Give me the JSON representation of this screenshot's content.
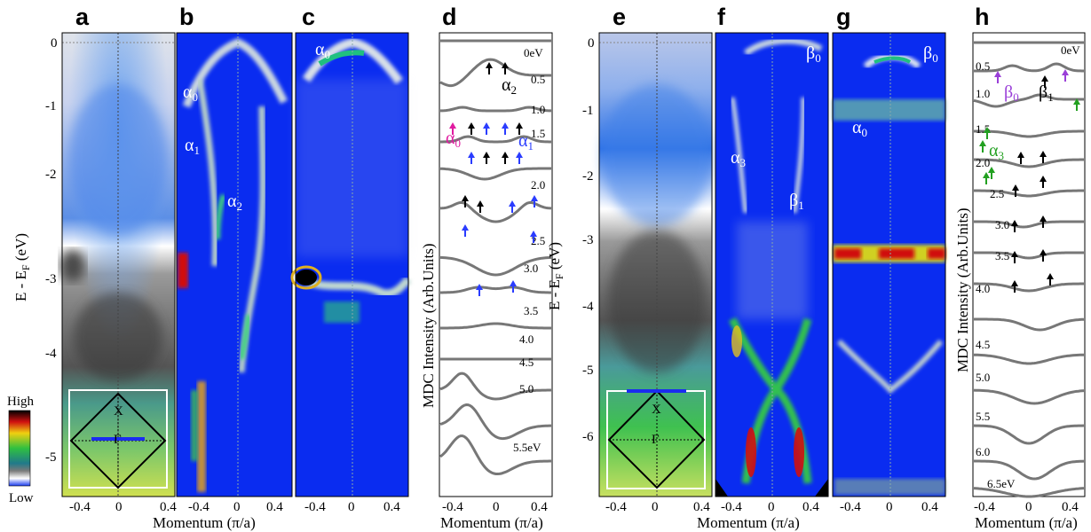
{
  "figure": {
    "panel_letters": [
      "a",
      "b",
      "c",
      "d",
      "e",
      "f",
      "g",
      "h"
    ],
    "y_axis_label": "E - E",
    "y_axis_subscript": "F",
    "y_axis_unit": " (eV)",
    "x_axis_label": "Momentum (π/a)",
    "mdc_axis_label": "MDC Intensity (Arb.Units)",
    "colorbar": {
      "high": "High",
      "low": "Low"
    },
    "bz_labels": {
      "x": "X",
      "gamma": "Γ"
    },
    "y_ticks_left": [
      "0",
      "-1",
      "-2",
      "-3",
      "-4",
      "-5"
    ],
    "y_ticks_right": [
      "0",
      "-1",
      "-2",
      "-3",
      "-4",
      "-5",
      "-6"
    ],
    "x_ticks": [
      "-0.4",
      "0",
      "0.4"
    ],
    "x_ticks_b": [
      "-0.4",
      "0",
      "0.4"
    ],
    "d_curve_labels": [
      "0eV",
      "0.5",
      "1.0",
      "1.5",
      "2.0",
      "2.5",
      "3.0",
      "3.5",
      "4.0",
      "4.5",
      "5.0",
      "5.5eV"
    ],
    "h_curve_labels": [
      "0eV",
      "0.5",
      "1.0",
      "1.5",
      "2.0",
      "2.5",
      "3.0",
      "3.5",
      "4.0",
      "4.5",
      "5.0",
      "5.5",
      "6.0",
      "6.5eV"
    ],
    "band_labels": {
      "alpha0": "α",
      "alpha0_sub": "0",
      "alpha1_sub": "1",
      "alpha2_sub": "2",
      "alpha3_sub": "3",
      "beta": "β",
      "beta0_sub": "0",
      "beta1_sub": "1"
    },
    "colors": {
      "spectrum_blue": "#0a2cf0",
      "curve_gray": "#777777",
      "arrow_black": "#000000",
      "arrow_blue": "#2a3cff",
      "arrow_magenta": "#e01aa0",
      "arrow_purple": "#9a3fd8",
      "arrow_green": "#22a020",
      "label_magenta": "#e01aa0",
      "label_blue": "#2a3cff",
      "label_purple": "#9a3fd8",
      "label_green": "#22a020"
    }
  }
}
